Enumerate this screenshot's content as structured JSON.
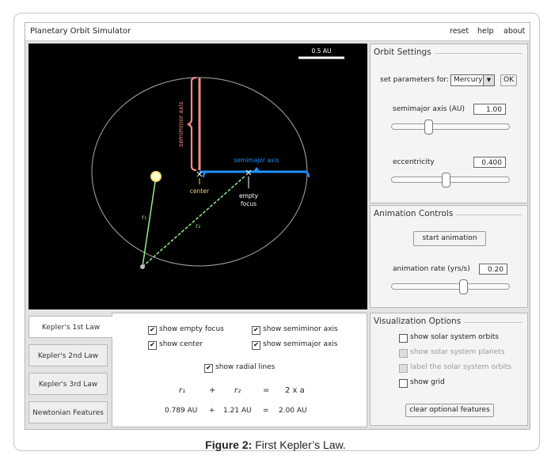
{
  "app": {
    "title": "Planetary Orbit Simulator",
    "menu": [
      "reset",
      "help",
      "about"
    ]
  },
  "canvas": {
    "scale_label": "0.5 AU",
    "labels": {
      "semiminor": "semiminor axis",
      "semimajor": "semimajor axis",
      "center": "center",
      "empty_focus_1": "empty",
      "empty_focus_2": "focus",
      "r1": "r₁",
      "r2": "r₂"
    },
    "colors": {
      "semiminor": "#f08a8a",
      "semimajor": "#1e90ff",
      "radial": "#90ee90",
      "center_mark": "#f5d66a",
      "sun": "#ffffcc"
    }
  },
  "orbit_settings": {
    "title": "Orbit Settings",
    "set_params_label": "set parameters for:",
    "planet": "Mercury",
    "ok_label": "OK",
    "semimajor_label": "semimajor axis (AU)",
    "semimajor_value": "1.00",
    "semimajor_slider": 0.32,
    "eccentricity_label": "eccentricity",
    "eccentricity_value": "0.400",
    "eccentricity_slider": 0.47
  },
  "animation": {
    "title": "Animation Controls",
    "start_label": "start animation",
    "rate_label": "animation rate (yrs/s)",
    "rate_value": "0.20",
    "rate_slider": 0.62
  },
  "visualization": {
    "title": "Visualization Options",
    "options": [
      {
        "label": "show solar system orbits",
        "checked": false,
        "enabled": true
      },
      {
        "label": "show solar system planets",
        "checked": false,
        "enabled": false
      },
      {
        "label": "label the solar system orbits",
        "checked": false,
        "enabled": false
      },
      {
        "label": "show grid",
        "checked": false,
        "enabled": true
      }
    ],
    "clear_label": "clear optional features"
  },
  "tabs": [
    "Kepler's 1st Law",
    "Kepler's 2nd Law",
    "Kepler's 3rd Law",
    "Newtonian Features"
  ],
  "kepler1": {
    "show_empty_focus": "show empty focus",
    "show_center": "show center",
    "show_semiminor": "show semiminor axis",
    "show_semimajor": "show semimajor axis",
    "show_radial": "show radial lines",
    "check_mark": "✔",
    "eq": {
      "r1": "r₁",
      "plus": "+",
      "r2": "r₂",
      "equals": "=",
      "rhs": "2 x a"
    },
    "vals": {
      "r1": "0.789 AU",
      "plus": "+",
      "r2": "1.21 AU",
      "equals": "=",
      "rhs": "2.00 AU"
    }
  },
  "caption": {
    "label": "Figure 2:",
    "text": "First Kepler’s Law."
  }
}
